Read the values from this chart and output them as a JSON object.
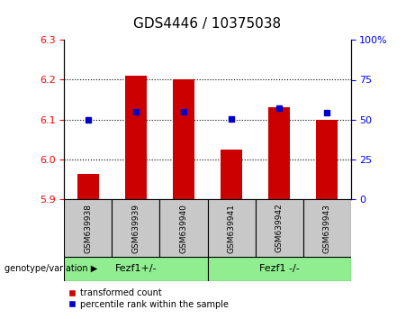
{
  "title": "GDS4446 / 10375038",
  "samples": [
    "GSM639938",
    "GSM639939",
    "GSM639940",
    "GSM639941",
    "GSM639942",
    "GSM639943"
  ],
  "red_values": [
    5.963,
    6.21,
    6.2,
    6.025,
    6.13,
    6.1
  ],
  "blue_values": [
    6.1,
    6.12,
    6.12,
    6.102,
    6.128,
    6.118
  ],
  "ylim_left": [
    5.9,
    6.3
  ],
  "ylim_right": [
    0,
    100
  ],
  "yticks_left": [
    5.9,
    6.0,
    6.1,
    6.2,
    6.3
  ],
  "yticks_right": [
    0,
    25,
    50,
    75,
    100
  ],
  "ytick_labels_right": [
    "0",
    "25",
    "50",
    "75",
    "100%"
  ],
  "grid_yticks": [
    6.0,
    6.1,
    6.2
  ],
  "groups": [
    {
      "label": "Fezf1+/-",
      "start": 0,
      "end": 3,
      "color": "#90EE90"
    },
    {
      "label": "Fezf1 -/-",
      "start": 3,
      "end": 6,
      "color": "#90EE90"
    }
  ],
  "group_label_prefix": "genotype/variation",
  "bar_color": "#CC0000",
  "dot_color": "#0000CC",
  "bar_width": 0.45,
  "sample_bg_color": "#C8C8C8",
  "legend_red_label": "transformed count",
  "legend_blue_label": "percentile rank within the sample",
  "title_fontsize": 11,
  "tick_fontsize": 8,
  "label_fontsize": 7,
  "group_fontsize": 8,
  "sample_fontsize": 6.5
}
